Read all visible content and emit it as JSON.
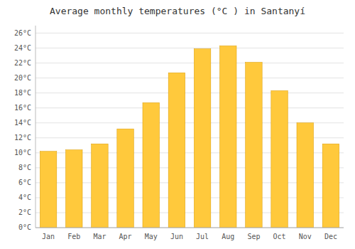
{
  "chart_data": {
    "type": "bar",
    "title": "Average monthly temperatures (°C ) in Santanyí",
    "categories": [
      "Jan",
      "Feb",
      "Mar",
      "Apr",
      "May",
      "Jun",
      "Jul",
      "Aug",
      "Sep",
      "Oct",
      "Nov",
      "Dec"
    ],
    "values": [
      10.2,
      10.4,
      11.2,
      13.2,
      16.7,
      20.7,
      23.9,
      24.3,
      22.1,
      18.3,
      14.0,
      11.2
    ],
    "color": "#FFC93C",
    "ylim": [
      0,
      27
    ],
    "yticks": [
      {
        "value": 0,
        "label": "0°C"
      },
      {
        "value": 2,
        "label": "2°C"
      },
      {
        "value": 4,
        "label": "4°C"
      },
      {
        "value": 6,
        "label": "6°C"
      },
      {
        "value": 8,
        "label": "8°C"
      },
      {
        "value": 10,
        "label": "10°C"
      },
      {
        "value": 12,
        "label": "12°C"
      },
      {
        "value": 14,
        "label": "14°C"
      },
      {
        "value": 16,
        "label": "16°C"
      },
      {
        "value": 18,
        "label": "18°C"
      },
      {
        "value": 20,
        "label": "20°C"
      },
      {
        "value": 22,
        "label": "22°C"
      },
      {
        "value": 24,
        "label": "24°C"
      },
      {
        "value": 26,
        "label": "26°C"
      }
    ],
    "grid": true
  }
}
